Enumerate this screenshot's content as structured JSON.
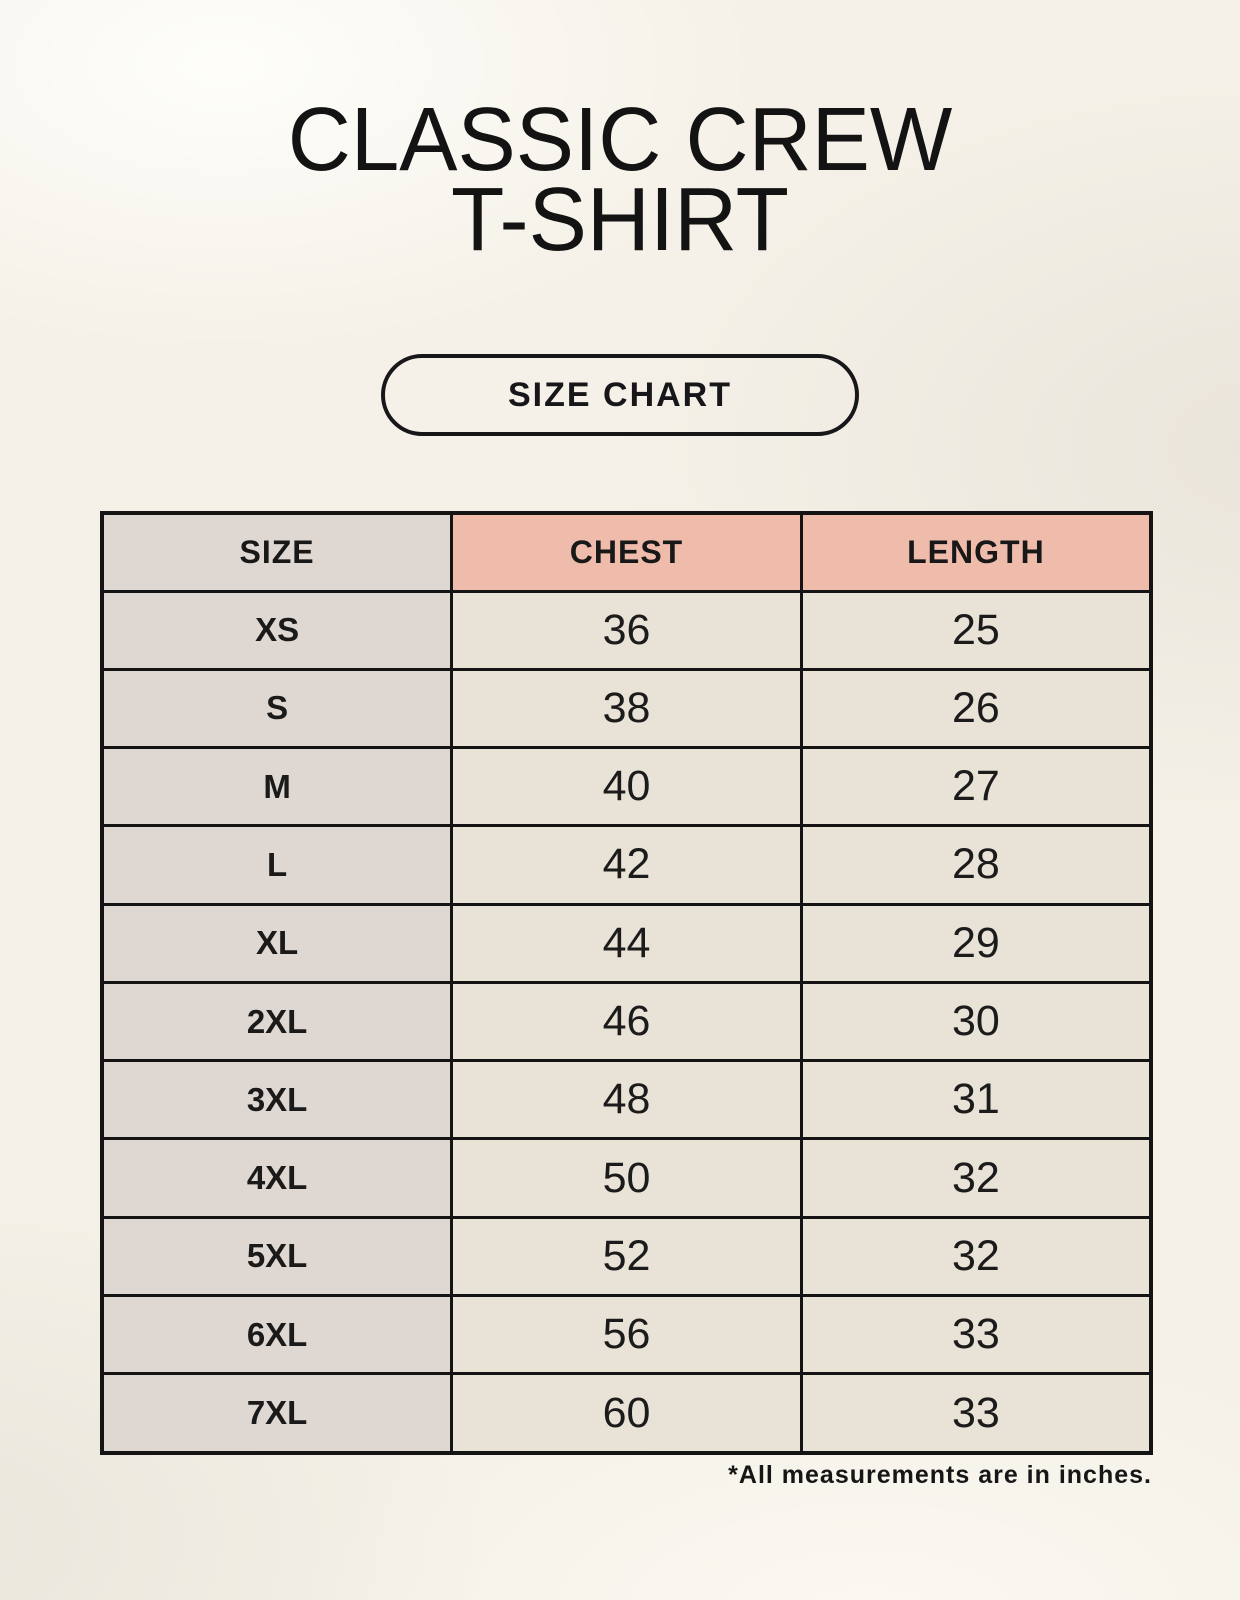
{
  "page_title": {
    "line1": "CLASSIC CREW",
    "line2": "T-SHIRT"
  },
  "badge": {
    "label": "SIZE CHART"
  },
  "footnote": "*All measurements are in inches.",
  "colors": {
    "background": "#f5f1e8",
    "size_column_bg": "#ded7d2",
    "header_accent_bg": "#efbcab",
    "data_cell_bg": "#e9e2d6",
    "border": "#141414",
    "text": "#1a1a1a"
  },
  "chart_data": {
    "type": "table",
    "title": "CLASSIC CREW T-SHIRT",
    "columns": [
      "SIZE",
      "CHEST",
      "LENGTH"
    ],
    "rows": [
      [
        "XS",
        "36",
        "25"
      ],
      [
        "S",
        "38",
        "26"
      ],
      [
        "M",
        "40",
        "27"
      ],
      [
        "L",
        "42",
        "28"
      ],
      [
        "XL",
        "44",
        "29"
      ],
      [
        "2XL",
        "46",
        "30"
      ],
      [
        "3XL",
        "48",
        "31"
      ],
      [
        "4XL",
        "50",
        "32"
      ],
      [
        "5XL",
        "52",
        "32"
      ],
      [
        "6XL",
        "56",
        "33"
      ],
      [
        "7XL",
        "60",
        "33"
      ]
    ],
    "note": "*All measurements are in inches.",
    "units": "inches"
  }
}
